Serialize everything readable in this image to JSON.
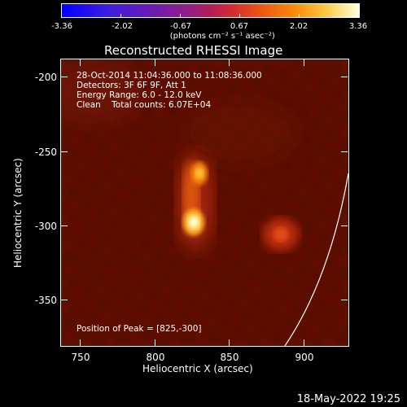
{
  "colorbar": {
    "ticks": [
      "-3.36",
      "-2.02",
      "-0.67",
      "0.67",
      "2.02",
      "3.36"
    ],
    "units": "(photons cm⁻² s⁻¹ asec⁻²)"
  },
  "title": "Reconstructed RHESSI Image",
  "info": {
    "time_range": "28-Oct-2014 11:04:36.000 to 11:08:36.000",
    "detectors": "Detectors: 3F 6F 9F, Att 1",
    "energy": "Energy Range: 6.0 - 12.0 keV",
    "clean": "Clean    Total counts: 6.07E+04",
    "peak": "Position of Peak = [825,-300]"
  },
  "axes": {
    "ylabel": "Heliocentric Y (arcsec)",
    "xlabel": "Heliocentric X (arcsec)",
    "yticks": [
      "-200",
      "-250",
      "-300",
      "-350"
    ],
    "xticks": [
      "750",
      "800",
      "850",
      "900"
    ]
  },
  "footer": {
    "date": "18-May-2022 19:25"
  },
  "colors": {
    "background": "#000000",
    "image_base": "#5a0d05",
    "hot_core": "#ffffcc"
  }
}
